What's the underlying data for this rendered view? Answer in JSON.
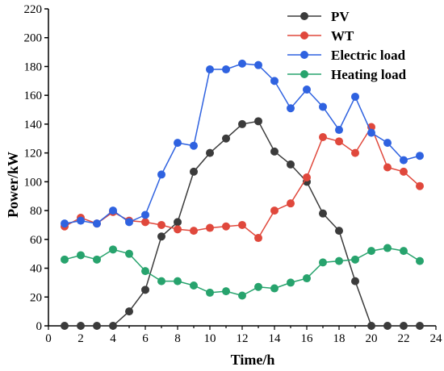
{
  "chart_data": {
    "type": "line",
    "title": "",
    "xlabel": "Time/h",
    "ylabel": "Power/kW",
    "xlim": [
      0,
      24
    ],
    "ylim": [
      0,
      220
    ],
    "xticks": [
      0,
      2,
      4,
      6,
      8,
      10,
      12,
      14,
      16,
      18,
      20,
      22,
      24
    ],
    "yticks": [
      0,
      20,
      40,
      60,
      80,
      100,
      120,
      140,
      160,
      180,
      200,
      220
    ],
    "grid": false,
    "legend_position": "top-right",
    "x": [
      1,
      2,
      3,
      4,
      5,
      6,
      7,
      8,
      9,
      10,
      11,
      12,
      13,
      14,
      15,
      16,
      17,
      18,
      19,
      20,
      21,
      22,
      23
    ],
    "series": [
      {
        "name": "PV",
        "color": "#3b3b3b",
        "values": [
          0,
          0,
          0,
          0,
          10,
          25,
          62,
          72,
          107,
          120,
          130,
          140,
          142,
          121,
          112,
          100,
          78,
          66,
          31,
          0,
          0,
          0,
          0
        ]
      },
      {
        "name": "WT",
        "color": "#e0483c",
        "values": [
          69,
          75,
          71,
          79,
          73,
          72,
          70,
          67,
          66,
          68,
          69,
          70,
          61,
          80,
          85,
          103,
          131,
          128,
          120,
          138,
          110,
          107,
          97
        ]
      },
      {
        "name": "Electric load",
        "color": "#2f62e0",
        "values": [
          71,
          73,
          71,
          80,
          72,
          77,
          105,
          127,
          125,
          178,
          178,
          182,
          181,
          170,
          151,
          164,
          152,
          136,
          159,
          134,
          127,
          115,
          118
        ]
      },
      {
        "name": "Heating load",
        "color": "#27a36d",
        "values": [
          46,
          49,
          46,
          53,
          50,
          38,
          31,
          31,
          28,
          23,
          24,
          21,
          27,
          26,
          30,
          33,
          44,
          45,
          46,
          52,
          54,
          52,
          45
        ]
      }
    ]
  }
}
